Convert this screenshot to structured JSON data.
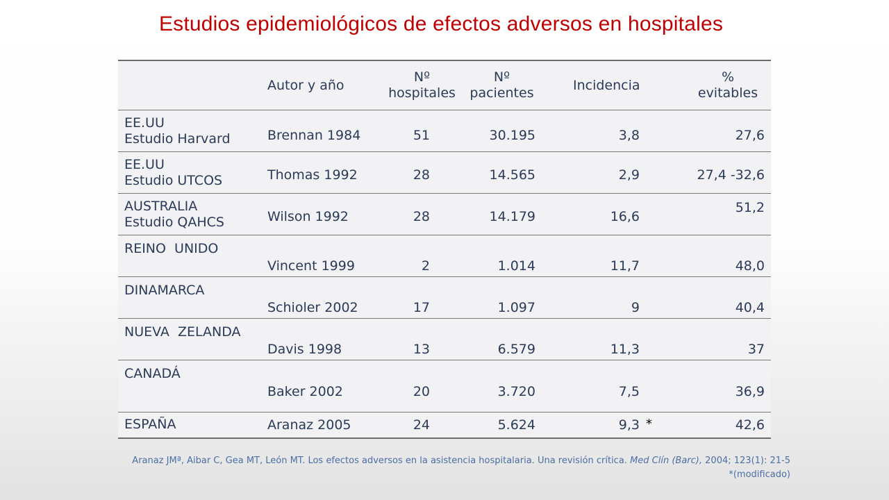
{
  "title": "Estudios epidemiológicos de efectos adversos en hospitales",
  "table": {
    "headers": {
      "autor": "Autor y año",
      "hosp_1": "Nº",
      "hosp_2": "hospitales",
      "pac_1": "Nº",
      "pac_2": "pacientes",
      "incidencia": "Incidencia",
      "evit_1": "%",
      "evit_2": "evitables"
    },
    "rows": [
      {
        "country_1": "EE.UU",
        "country_2": "Estudio Harvard",
        "author": "Brennan 1984",
        "hospitals": "51",
        "patients": "30.195",
        "incidence": "3,8",
        "evitables": "27,6"
      },
      {
        "country_1": "EE.UU",
        "country_2": "Estudio UTCOS",
        "author": "Thomas 1992",
        "hospitals": "28",
        "patients": "14.565",
        "incidence": "2,9",
        "evitables": "27,4 -32,6"
      },
      {
        "country_1": "AUSTRALIA",
        "country_2": "Estudio QAHCS",
        "author": "Wilson 1992",
        "hospitals": "28",
        "patients": "14.179",
        "incidence": "16,6",
        "evitables": "51,2"
      },
      {
        "country_1": "REINO  UNIDO",
        "author": "Vincent 1999",
        "hospitals": "2",
        "patients": "1.014",
        "incidence": "11,7",
        "evitables": "48,0"
      },
      {
        "country_1": "DINAMARCA",
        "author": "Schioler 2002",
        "hospitals": "17",
        "patients": "1.097",
        "incidence": "9",
        "evitables": "40,4"
      },
      {
        "country_1": "NUEVA  ZELANDA",
        "author": "Davis 1998",
        "hospitals": "13",
        "patients": "6.579",
        "incidence": "11,3",
        "evitables": "37"
      },
      {
        "country_1": "CANADÁ",
        "author": "Baker 2002",
        "hospitals": "20",
        "patients": "3.720",
        "incidence": "7,5",
        "evitables": "36,9"
      },
      {
        "country_1": "ESPAÑA",
        "author": "Aranaz 2005",
        "hospitals": "24",
        "patients": "5.624",
        "incidence": "9,3",
        "incidence_note": "*",
        "evitables": "42,6"
      }
    ]
  },
  "reference": {
    "text_before": "Aranaz JMª, Aibar C, Gea MT, León MT. Los efectos adversos en la asistencia hospitalaria. Una revisión crítica.",
    "journal": "Med Clín (Barc),",
    "text_after": "2004; 123(1): 21-5",
    "note": "*(modificado)"
  }
}
